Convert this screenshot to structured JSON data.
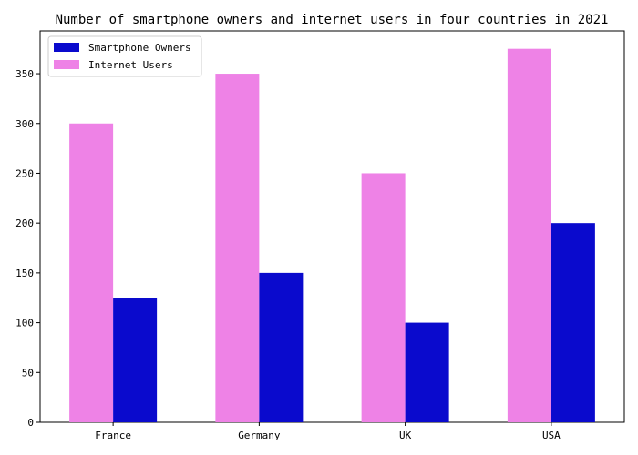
{
  "chart_data": {
    "type": "bar",
    "title": "Number of smartphone owners and internet users in four countries in 2021",
    "xlabel": "",
    "ylabel": "",
    "categories": [
      "France",
      "Germany",
      "UK",
      "USA"
    ],
    "series": [
      {
        "name": "Internet Users",
        "values": [
          300,
          350,
          250,
          375
        ],
        "color": "#ee82e6"
      },
      {
        "name": "Smartphone Owners",
        "values": [
          125,
          150,
          100,
          200
        ],
        "color": "#0a0acd"
      }
    ],
    "legend_order": [
      "Smartphone Owners",
      "Internet Users"
    ],
    "ylim": [
      0,
      393
    ],
    "yticks": [
      0,
      50,
      100,
      150,
      200,
      250,
      300,
      350
    ],
    "grid": false,
    "legend_position": "top-left"
  }
}
